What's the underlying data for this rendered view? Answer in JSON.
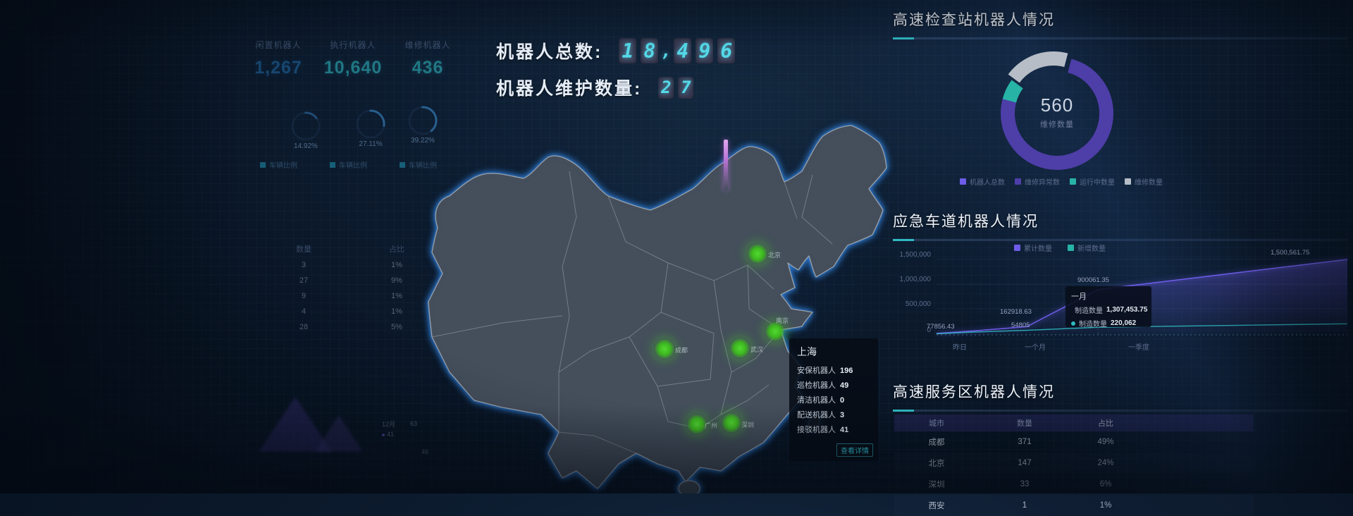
{
  "colors": {
    "accent_teal": "#2fb9c2",
    "accent_purple": "#6c5ce7",
    "digit_cyan": "#55d8e8",
    "dot_green": "#3db81f",
    "map_glow_blue": "#2e7cd6"
  },
  "header": {
    "total_label": "机器人总数:",
    "total_value": "18,496",
    "total_digits": [
      "1",
      "8",
      ",",
      "4",
      "9",
      "6"
    ],
    "maint_label": "机器人维护数量:",
    "maint_value": "27",
    "maint_digits": [
      "2",
      "7"
    ]
  },
  "left_panel": {
    "stats": [
      {
        "label": "闲置机器人",
        "value": "1,267"
      },
      {
        "label": "执行机器人",
        "value": "10,640"
      },
      {
        "label": "维修机器人",
        "value": "436"
      }
    ],
    "gauges": [
      {
        "percent": "14.92%",
        "label": "车辆比例"
      },
      {
        "percent": "27.11%",
        "label": "车辆比例"
      },
      {
        "percent": "39.22%",
        "label": "车辆比例"
      }
    ],
    "table": {
      "headers": [
        "数量",
        "占比"
      ],
      "rows": [
        [
          "3",
          "1%"
        ],
        [
          "27",
          "9%"
        ],
        [
          "9",
          "1%"
        ],
        [
          "4",
          "1%"
        ],
        [
          "28",
          "5%"
        ]
      ]
    },
    "mini_chart": {
      "month_label": "12月",
      "value": "41",
      "axis_labels": [
        "63",
        "46"
      ]
    }
  },
  "map": {
    "dots": [
      {
        "label": "北京"
      },
      {
        "label": "成都"
      },
      {
        "label": "武汉"
      },
      {
        "label": "南京"
      },
      {
        "label": "广州"
      },
      {
        "label": "深圳"
      }
    ],
    "tooltip": {
      "city": "上海",
      "rows": [
        {
          "label": "安保机器人",
          "value": "196"
        },
        {
          "label": "巡检机器人",
          "value": "49"
        },
        {
          "label": "清洁机器人",
          "value": "0"
        },
        {
          "label": "配送机器人",
          "value": "3"
        },
        {
          "label": "接驳机器人",
          "value": "41"
        }
      ],
      "action": "查看详情"
    }
  },
  "chart_data": [
    {
      "id": "checkpoint_donut",
      "type": "pie",
      "title": "高速检查站机器人情况",
      "center_value": "560",
      "center_label": "维修数量",
      "slices": [
        {
          "name": "维修异常数",
          "value": 6,
          "color": "#27b3a6"
        },
        {
          "name": "运行中数量",
          "value": 19,
          "color": "#b6bdc6"
        },
        {
          "name": "机器人总数",
          "value": 75,
          "color": "#4e3ea8"
        }
      ],
      "legend": [
        {
          "label": "机器人总数",
          "color": "#6c5ce7"
        },
        {
          "label": "维修异常数",
          "color": "#4e3ea8"
        },
        {
          "label": "运行中数量",
          "color": "#27b3a6"
        },
        {
          "label": "维修数量",
          "color": "#b6bdc6"
        }
      ]
    },
    {
      "id": "emergency_line",
      "type": "line",
      "title": "应急车道机器人情况",
      "x_labels": [
        "昨日",
        "一个月",
        "一季度"
      ],
      "yticks": [
        "1,500,000",
        "1,000,000",
        "500,000",
        "0"
      ],
      "ylim": [
        0,
        1500000
      ],
      "series": [
        {
          "name": "累计数量",
          "color": "#6c5ce7",
          "values": [
            30000,
            77856.43,
            162918.63,
            900061.35,
            1500561.75
          ]
        },
        {
          "name": "新增数量",
          "color": "#2fb9c2",
          "values": [
            20000,
            54805,
            90000,
            150000,
            220062
          ]
        }
      ],
      "point_labels": [
        "77856.43",
        "162918.63",
        "54805",
        "900061.35",
        "1,500,561.75"
      ],
      "tooltip": {
        "title": "一月",
        "rows": [
          {
            "name": "制造数量",
            "value": "1,307,453.75",
            "color": "#6c5ce7"
          },
          {
            "name": "制造数量",
            "value": "220,062",
            "color": "#2fb9c2"
          }
        ]
      }
    },
    {
      "id": "service_table",
      "type": "table",
      "title": "高速服务区机器人情况",
      "headers": [
        "城市",
        "数量",
        "占比"
      ],
      "rows": [
        [
          "成都",
          "371",
          "49%"
        ],
        [
          "北京",
          "147",
          "24%"
        ],
        [
          "深圳",
          "33",
          "6%"
        ],
        [
          "西安",
          "1",
          "1%"
        ]
      ]
    }
  ]
}
